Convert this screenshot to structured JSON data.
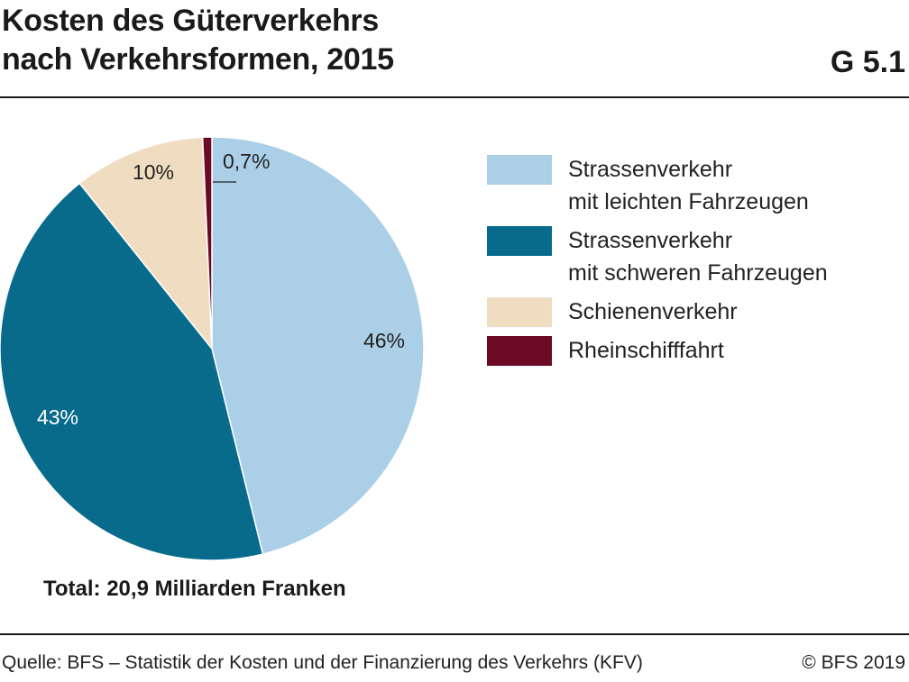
{
  "header": {
    "title": "Kosten des Güterverkehrs\nnach Verkehrsformen, 2015",
    "figure_number": "G 5.1"
  },
  "chart_data": {
    "type": "pie",
    "title": "Kosten des Güterverkehrs nach Verkehrsformen, 2015",
    "slices": [
      {
        "name": "Strassenverkehr mit leichten Fahrzeugen",
        "legend": "Strassenverkehr\nmit leichten Fahrzeugen",
        "value": 46,
        "label": "46%",
        "color": "#abcfe7",
        "label_color": "#222222"
      },
      {
        "name": "Strassenverkehr mit schweren Fahrzeugen",
        "legend": "Strassenverkehr\nmit schweren Fahrzeugen",
        "value": 43,
        "label": "43%",
        "color": "#086b8b",
        "label_color": "#ffffff"
      },
      {
        "name": "Schienenverkehr",
        "legend": "Schienenverkehr",
        "value": 10,
        "label": "10%",
        "color": "#f0ddc1",
        "label_color": "#222222"
      },
      {
        "name": "Rheinschifffahrt",
        "legend": "Rheinschifffahrt",
        "value": 0.7,
        "label": "0,7%",
        "color": "#6c0a25",
        "label_color": "#222222"
      }
    ],
    "start": "12 o'clock",
    "direction": "clockwise",
    "legend_position": "right"
  },
  "total_text": "Total: 20,9 Milliarden Franken",
  "footer": {
    "source": "Quelle: BFS – Statistik der Kosten und der Finanzierung des Verkehrs (KFV)",
    "copyright": "© BFS 2019"
  }
}
